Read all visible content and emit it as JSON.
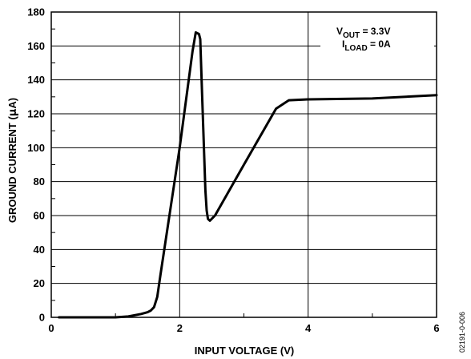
{
  "chart_data": {
    "type": "line",
    "title": "",
    "xlabel": "INPUT VOLTAGE (V)",
    "ylabel_main": "GROUND CURRENT (",
    "ylabel_mu": "µ",
    "ylabel_tail": "A)",
    "xlim": [
      0,
      6
    ],
    "ylim": [
      0,
      180
    ],
    "xticks": [
      "0",
      "2",
      "4",
      "6"
    ],
    "yticks": [
      "0",
      "20",
      "40",
      "60",
      "80",
      "100",
      "120",
      "140",
      "160",
      "180"
    ],
    "grid": true,
    "series": [
      {
        "name": "",
        "x": [
          0.12,
          0.5,
          1.0,
          1.2,
          1.4,
          1.5,
          1.55,
          1.6,
          1.65,
          1.7,
          2.0,
          2.2,
          2.25,
          2.3,
          2.32,
          2.35,
          2.4,
          2.42,
          2.44,
          2.47,
          2.55,
          3.0,
          3.5,
          3.7,
          4.0,
          5.0,
          6.0
        ],
        "y": [
          0,
          0,
          0,
          0.5,
          2,
          3,
          4,
          6,
          12,
          25,
          100,
          157,
          168,
          167,
          164,
          130,
          75,
          63,
          58,
          57,
          60,
          90,
          123,
          128,
          128.5,
          129,
          131
        ]
      }
    ],
    "annotation": {
      "line1_main": "V",
      "line1_sub": "OUT",
      "line1_tail": " = 3.3V",
      "line2_main": "I",
      "line2_sub": "LOAD",
      "line2_tail": " = 0A"
    },
    "figure_id": "02191-0-006"
  }
}
